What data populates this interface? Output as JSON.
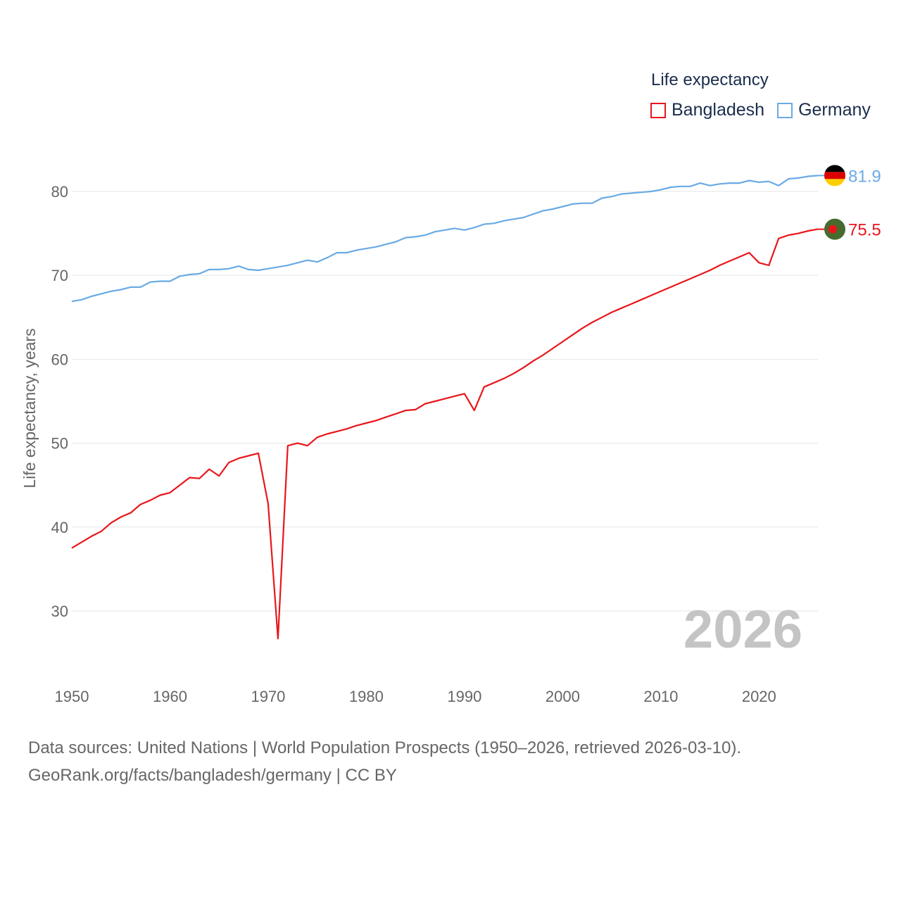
{
  "legend": {
    "title": "Life expectancy",
    "items": [
      {
        "name": "Bangladesh",
        "color": "#e8161b"
      },
      {
        "name": "Germany",
        "color": "#6aaae4"
      }
    ]
  },
  "footer": {
    "line1": "Data sources: United Nations | World Population Prospects (1950–2026, retrieved 2026-03-10).",
    "line2": "GeoRank.org/facts/bangladesh/germany | CC BY"
  },
  "chart_data": {
    "type": "line",
    "title": "Life expectancy",
    "xlabel": "",
    "ylabel": "Life expectancy, years",
    "xlim": [
      1950,
      2026
    ],
    "ylim": [
      23,
      85
    ],
    "xticks": [
      1950,
      1960,
      1970,
      1980,
      1990,
      2000,
      2010,
      2020
    ],
    "yticks": [
      30,
      40,
      50,
      60,
      70,
      80
    ],
    "grid": true,
    "legend_position": "top-right",
    "year_stamp": "2026",
    "x": [
      1950,
      1951,
      1952,
      1953,
      1954,
      1955,
      1956,
      1957,
      1958,
      1959,
      1960,
      1961,
      1962,
      1963,
      1964,
      1965,
      1966,
      1967,
      1968,
      1969,
      1970,
      1971,
      1972,
      1973,
      1974,
      1975,
      1976,
      1977,
      1978,
      1979,
      1980,
      1981,
      1982,
      1983,
      1984,
      1985,
      1986,
      1987,
      1988,
      1989,
      1990,
      1991,
      1992,
      1993,
      1994,
      1995,
      1996,
      1997,
      1998,
      1999,
      2000,
      2001,
      2002,
      2003,
      2004,
      2005,
      2006,
      2007,
      2008,
      2009,
      2010,
      2011,
      2012,
      2013,
      2014,
      2015,
      2016,
      2017,
      2018,
      2019,
      2020,
      2021,
      2022,
      2023,
      2024,
      2025,
      2026
    ],
    "series": [
      {
        "name": "Bangladesh",
        "color": "#e8161b",
        "end_label": "75.5",
        "flag": "bangladesh-flag",
        "values": [
          37.5,
          38.2,
          38.9,
          39.5,
          40.5,
          41.2,
          41.7,
          42.7,
          43.2,
          43.8,
          44.1,
          45.0,
          45.9,
          45.8,
          46.9,
          46.1,
          47.7,
          48.2,
          48.5,
          48.8,
          42.8,
          26.7,
          49.7,
          50.0,
          49.7,
          50.7,
          51.1,
          51.4,
          51.7,
          52.1,
          52.4,
          52.7,
          53.1,
          53.5,
          53.9,
          54.0,
          54.7,
          55.0,
          55.3,
          55.6,
          55.9,
          53.9,
          56.7,
          57.2,
          57.7,
          58.3,
          59.0,
          59.8,
          60.5,
          61.3,
          62.1,
          62.9,
          63.7,
          64.4,
          65.0,
          65.6,
          66.1,
          66.6,
          67.1,
          67.6,
          68.1,
          68.6,
          69.1,
          69.6,
          70.1,
          70.6,
          71.2,
          71.7,
          72.2,
          72.7,
          71.5,
          71.2,
          74.4,
          74.8,
          75.0,
          75.3,
          75.5
        ]
      },
      {
        "name": "Germany",
        "color": "#6aaae4",
        "end_label": "81.9",
        "flag": "germany-flag",
        "values": [
          66.9,
          67.1,
          67.5,
          67.8,
          68.1,
          68.3,
          68.6,
          68.6,
          69.2,
          69.3,
          69.3,
          69.9,
          70.1,
          70.2,
          70.7,
          70.7,
          70.8,
          71.1,
          70.7,
          70.6,
          70.8,
          71.0,
          71.2,
          71.5,
          71.8,
          71.6,
          72.1,
          72.7,
          72.7,
          73.0,
          73.2,
          73.4,
          73.7,
          74.0,
          74.5,
          74.6,
          74.8,
          75.2,
          75.4,
          75.6,
          75.4,
          75.7,
          76.1,
          76.2,
          76.5,
          76.7,
          76.9,
          77.3,
          77.7,
          77.9,
          78.2,
          78.5,
          78.6,
          78.6,
          79.2,
          79.4,
          79.7,
          79.8,
          79.9,
          80.0,
          80.2,
          80.5,
          80.6,
          80.6,
          81.0,
          80.7,
          80.9,
          81.0,
          81.0,
          81.3,
          81.1,
          81.2,
          80.7,
          81.5,
          81.6,
          81.8,
          81.9
        ]
      }
    ]
  }
}
